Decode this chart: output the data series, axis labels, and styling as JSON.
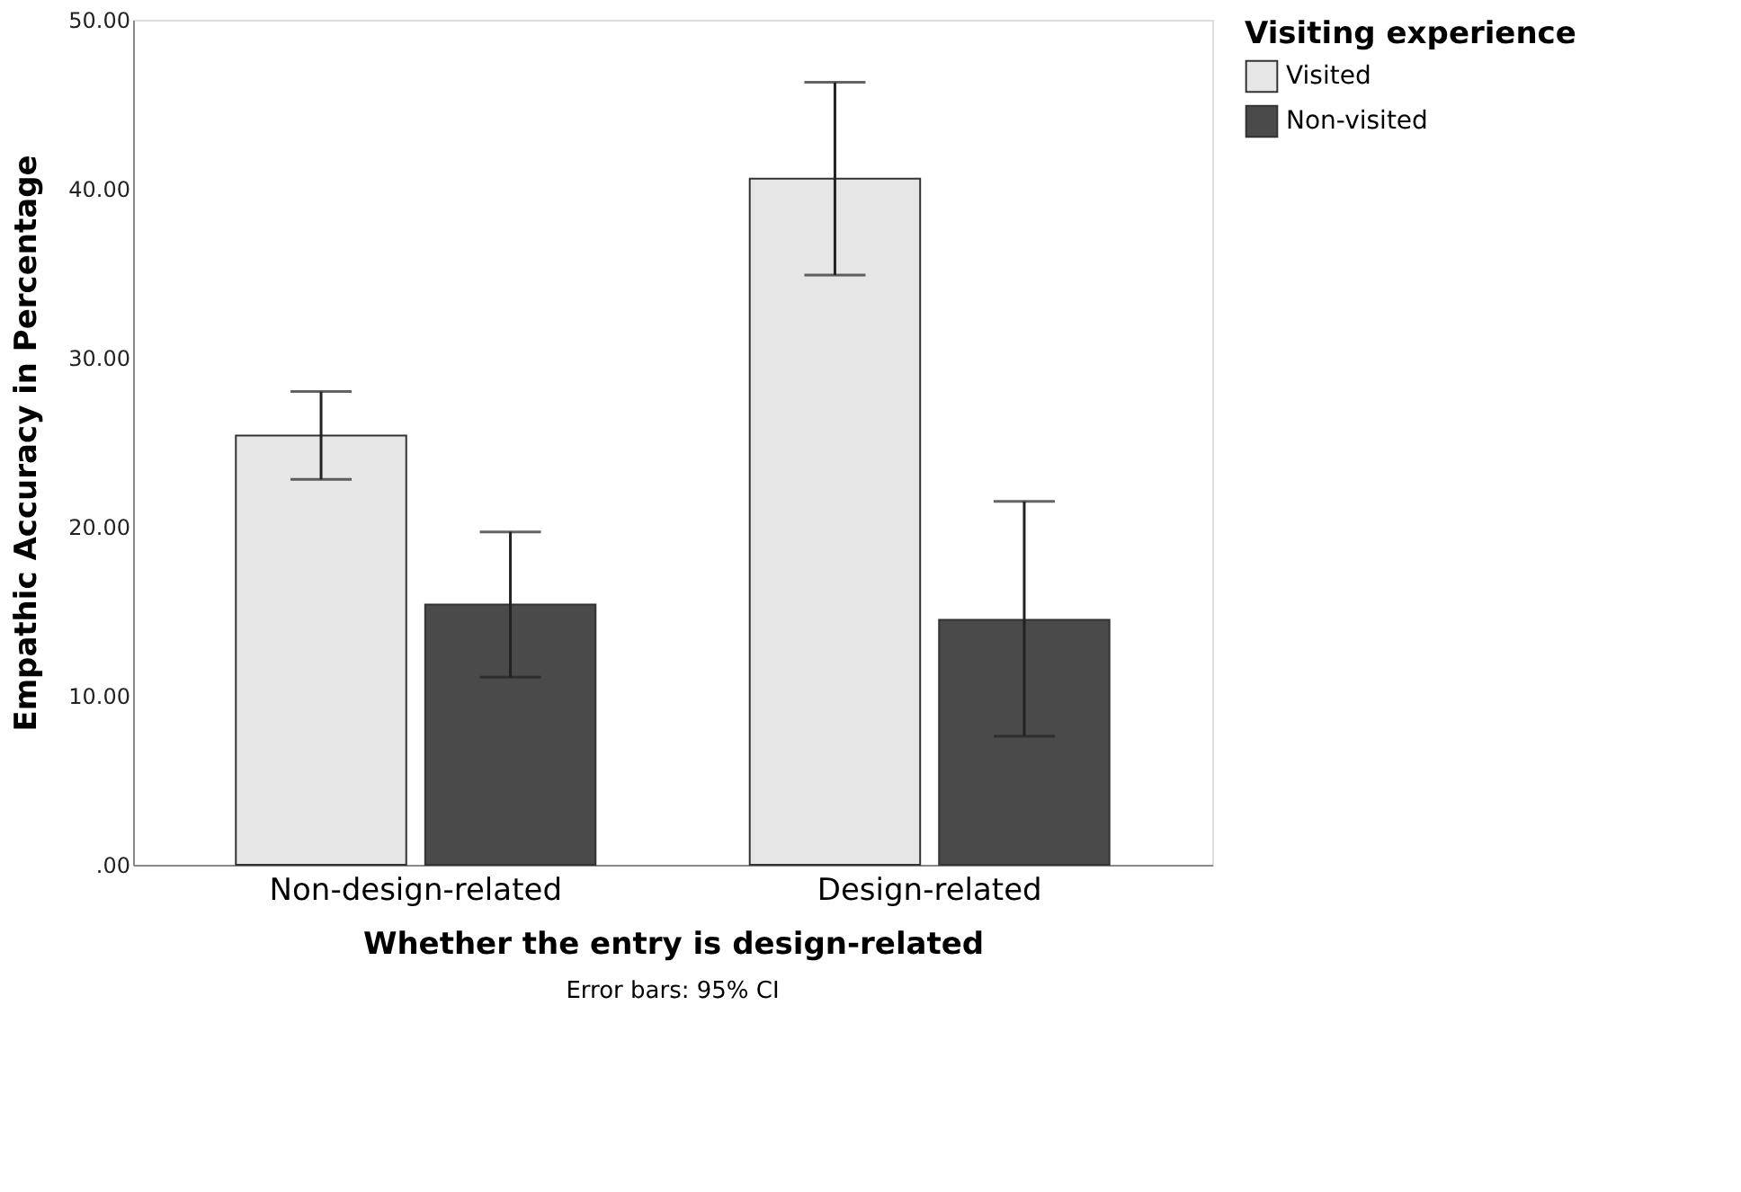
{
  "chart_data": {
    "type": "bar",
    "categories": [
      "Non-design-related",
      "Design-related"
    ],
    "xlabel": "Whether the entry is design-related",
    "ylabel": "Empathic Accuracy in Percentage",
    "legend_title": "Visiting experience",
    "series": [
      {
        "name": "Visited",
        "color": "#e6e6e6",
        "values": [
          25.4,
          40.6
        ],
        "errors": [
          [
            22.8,
            28.0
          ],
          [
            34.9,
            46.3
          ]
        ]
      },
      {
        "name": "Non-visited",
        "color": "#4a4a4a",
        "values": [
          15.4,
          14.5
        ],
        "errors": [
          [
            11.1,
            19.7
          ],
          [
            7.6,
            21.5
          ]
        ]
      }
    ],
    "ylim": [
      0,
      50
    ],
    "yticks": [
      {
        "value": 0,
        "label": ".00"
      },
      {
        "value": 10,
        "label": "10.00"
      },
      {
        "value": 20,
        "label": "20.00"
      },
      {
        "value": 30,
        "label": "30.00"
      },
      {
        "value": 40,
        "label": "40.00"
      },
      {
        "value": 50,
        "label": "50.00"
      }
    ],
    "grid": false,
    "legend": "top right",
    "annotations": [
      "Error bars: 95% CI"
    ]
  }
}
